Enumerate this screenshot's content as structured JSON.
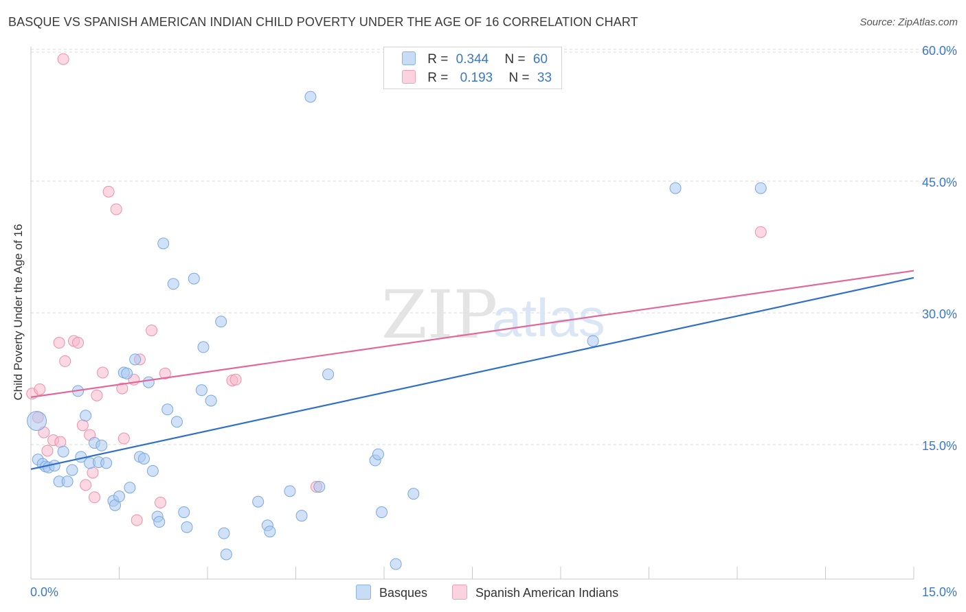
{
  "header": {
    "title": "BASQUE VS SPANISH AMERICAN INDIAN CHILD POVERTY UNDER THE AGE OF 16 CORRELATION CHART",
    "source": "Source: ZipAtlas.com"
  },
  "watermark": {
    "zip": "ZIP",
    "atlas": "atlas"
  },
  "legend_top": {
    "rows": [
      {
        "r_label": "R =",
        "r_value": "0.344",
        "n_label": "N =",
        "n_value": "60",
        "color": "#a9c8f2"
      },
      {
        "r_label": "R =",
        "r_value": "0.193",
        "n_label": "N =",
        "n_value": "33",
        "color": "#f7b8ca"
      }
    ]
  },
  "legend_bottom": {
    "items": [
      {
        "label": "Basques",
        "color": "#a9c8f2"
      },
      {
        "label": "Spanish American Indians",
        "color": "#f7b8ca"
      }
    ]
  },
  "chart_data": {
    "type": "scatter",
    "title": "BASQUE VS SPANISH AMERICAN INDIAN CHILD POVERTY UNDER THE AGE OF 16 CORRELATION CHART",
    "xlabel": "",
    "ylabel": "Child Poverty Under the Age of 16",
    "xlim": [
      0,
      15
    ],
    "ylim": [
      0,
      60
    ],
    "x_tick_labels": [
      "0.0%",
      "15.0%"
    ],
    "y_ticks": [
      15,
      30,
      45,
      60
    ],
    "y_tick_labels": [
      "15.0%",
      "30.0%",
      "45.0%",
      "60.0%"
    ],
    "grid": true,
    "colors": {
      "basques_fill": "#a9c8f2",
      "basques_stroke": "#7aa8e0",
      "basques_line": "#2f6fc7",
      "sai_fill": "#f7b8ca",
      "sai_stroke": "#ee8fab",
      "sai_line": "#e0689a",
      "axis_label": "#3a78c8"
    },
    "series": [
      {
        "name": "Basques",
        "trend": {
          "x": [
            0,
            15
          ],
          "y": [
            12.2,
            34
          ]
        },
        "points": [
          [
            0.1,
            17.7
          ],
          [
            0.12,
            13.3
          ],
          [
            0.2,
            12.8
          ],
          [
            0.25,
            12.5
          ],
          [
            0.3,
            12.4
          ],
          [
            0.4,
            12.6
          ],
          [
            0.48,
            10.8
          ],
          [
            0.55,
            14.2
          ],
          [
            0.62,
            10.8
          ],
          [
            0.7,
            12.1
          ],
          [
            0.8,
            21.1
          ],
          [
            0.85,
            13.6
          ],
          [
            0.93,
            18.3
          ],
          [
            1.0,
            12.9
          ],
          [
            1.08,
            15.2
          ],
          [
            1.15,
            13.0
          ],
          [
            1.2,
            14.9
          ],
          [
            1.28,
            12.9
          ],
          [
            1.4,
            8.6
          ],
          [
            1.43,
            8.1
          ],
          [
            1.5,
            9.1
          ],
          [
            1.58,
            23.2
          ],
          [
            1.63,
            23.1
          ],
          [
            1.68,
            10.1
          ],
          [
            1.77,
            24.7
          ],
          [
            1.85,
            13.6
          ],
          [
            1.92,
            13.4
          ],
          [
            2.0,
            22.1
          ],
          [
            2.07,
            12.0
          ],
          [
            2.15,
            6.8
          ],
          [
            2.18,
            6.2
          ],
          [
            2.25,
            37.9
          ],
          [
            2.32,
            19.0
          ],
          [
            2.42,
            33.3
          ],
          [
            2.48,
            17.6
          ],
          [
            2.6,
            7.3
          ],
          [
            2.65,
            5.6
          ],
          [
            2.77,
            33.9
          ],
          [
            2.9,
            21.2
          ],
          [
            2.93,
            26.1
          ],
          [
            3.06,
            20.0
          ],
          [
            3.23,
            29.0
          ],
          [
            3.28,
            4.9
          ],
          [
            3.32,
            2.5
          ],
          [
            3.86,
            8.5
          ],
          [
            4.02,
            5.8
          ],
          [
            4.06,
            5.1
          ],
          [
            4.4,
            9.7
          ],
          [
            4.6,
            6.9
          ],
          [
            4.75,
            54.6
          ],
          [
            4.9,
            10.2
          ],
          [
            5.05,
            23.0
          ],
          [
            5.85,
            13.2
          ],
          [
            5.9,
            13.9
          ],
          [
            5.96,
            7.3
          ],
          [
            6.2,
            1.4
          ],
          [
            6.5,
            9.4
          ],
          [
            9.55,
            26.8
          ],
          [
            10.95,
            44.2
          ],
          [
            12.4,
            44.2
          ]
        ]
      },
      {
        "name": "Spanish American Indians",
        "trend": {
          "x": [
            0,
            15
          ],
          "y": [
            20.4,
            34.8
          ]
        },
        "points": [
          [
            0.02,
            20.8
          ],
          [
            0.12,
            18.1
          ],
          [
            0.15,
            21.3
          ],
          [
            0.22,
            16.4
          ],
          [
            0.28,
            14.3
          ],
          [
            0.38,
            15.5
          ],
          [
            0.48,
            26.6
          ],
          [
            0.5,
            15.3
          ],
          [
            0.58,
            24.5
          ],
          [
            0.73,
            26.8
          ],
          [
            0.8,
            26.6
          ],
          [
            0.88,
            17.2
          ],
          [
            0.93,
            10.4
          ],
          [
            1.0,
            16.1
          ],
          [
            1.05,
            11.8
          ],
          [
            1.08,
            9.0
          ],
          [
            1.12,
            20.6
          ],
          [
            1.22,
            23.2
          ],
          [
            1.32,
            43.8
          ],
          [
            1.45,
            41.8
          ],
          [
            1.55,
            21.4
          ],
          [
            1.58,
            15.7
          ],
          [
            1.75,
            22.4
          ],
          [
            1.8,
            6.4
          ],
          [
            1.85,
            24.7
          ],
          [
            2.05,
            28.0
          ],
          [
            2.2,
            8.4
          ],
          [
            2.28,
            23.1
          ],
          [
            3.42,
            22.3
          ],
          [
            3.48,
            22.4
          ],
          [
            4.85,
            10.2
          ],
          [
            12.4,
            39.2
          ],
          [
            0.55,
            58.9
          ]
        ]
      }
    ]
  }
}
